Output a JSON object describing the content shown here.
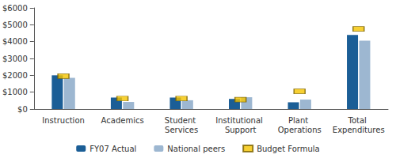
{
  "chart_data": {
    "type": "bar",
    "categories": [
      "Instruction",
      "Academics",
      "Student Services",
      "Institutional Support",
      "Plant Operations",
      "Total Expenditures"
    ],
    "series": [
      {
        "name": "FY07 Actual",
        "type": "bar",
        "color": "#1b5e96",
        "values": [
          2000,
          680,
          680,
          600,
          400,
          4400
        ]
      },
      {
        "name": "National peers",
        "type": "bar",
        "color": "#9db7d1",
        "values": [
          1850,
          420,
          520,
          700,
          560,
          4050
        ]
      },
      {
        "name": "Budget Formula",
        "type": "scatter",
        "marker": "rect",
        "color": "#f5c400",
        "values": [
          1950,
          620,
          620,
          560,
          1050,
          4750
        ]
      }
    ],
    "ylim": [
      0,
      6000
    ],
    "yticks": [
      {
        "value": 0,
        "label": "$0"
      },
      {
        "value": 1000,
        "label": "$1000"
      },
      {
        "value": 2000,
        "label": "$2000"
      },
      {
        "value": 3000,
        "label": "$3000"
      },
      {
        "value": 4000,
        "label": "$4000"
      },
      {
        "value": 5000,
        "label": "$5000"
      },
      {
        "value": 6000,
        "label": "$6000"
      }
    ],
    "grid": false,
    "legend": "bottom"
  }
}
